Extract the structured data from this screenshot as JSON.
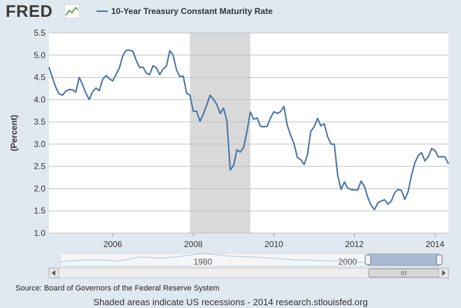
{
  "header": {
    "logo_text": "FRED",
    "logo_icon": "chart-line-icon"
  },
  "chart_data": {
    "type": "line",
    "series": [
      {
        "name": "10-Year Treasury Constant Maturity Rate",
        "color": "#4572a7",
        "x": [
          "2004-06",
          "2004-07",
          "2004-08",
          "2004-09",
          "2004-10",
          "2004-11",
          "2004-12",
          "2005-01",
          "2005-02",
          "2005-03",
          "2005-04",
          "2005-05",
          "2005-06",
          "2005-07",
          "2005-08",
          "2005-09",
          "2005-10",
          "2005-11",
          "2005-12",
          "2006-01",
          "2006-02",
          "2006-03",
          "2006-04",
          "2006-05",
          "2006-06",
          "2006-07",
          "2006-08",
          "2006-09",
          "2006-10",
          "2006-11",
          "2006-12",
          "2007-01",
          "2007-02",
          "2007-03",
          "2007-04",
          "2007-05",
          "2007-06",
          "2007-07",
          "2007-08",
          "2007-09",
          "2007-10",
          "2007-11",
          "2007-12",
          "2008-01",
          "2008-02",
          "2008-03",
          "2008-04",
          "2008-05",
          "2008-06",
          "2008-07",
          "2008-08",
          "2008-09",
          "2008-10",
          "2008-11",
          "2008-12",
          "2009-01",
          "2009-02",
          "2009-03",
          "2009-04",
          "2009-05",
          "2009-06",
          "2009-07",
          "2009-08",
          "2009-09",
          "2009-10",
          "2009-11",
          "2009-12",
          "2010-01",
          "2010-02",
          "2010-03",
          "2010-04",
          "2010-05",
          "2010-06",
          "2010-07",
          "2010-08",
          "2010-09",
          "2010-10",
          "2010-11",
          "2010-12",
          "2011-01",
          "2011-02",
          "2011-03",
          "2011-04",
          "2011-05",
          "2011-06",
          "2011-07",
          "2011-08",
          "2011-09",
          "2011-10",
          "2011-11",
          "2011-12",
          "2012-01",
          "2012-02",
          "2012-03",
          "2012-04",
          "2012-05",
          "2012-06",
          "2012-07",
          "2012-08",
          "2012-09",
          "2012-10",
          "2012-11",
          "2012-12",
          "2013-01",
          "2013-02",
          "2013-03",
          "2013-04",
          "2013-05",
          "2013-06",
          "2013-07",
          "2013-08",
          "2013-09",
          "2013-10",
          "2013-11",
          "2013-12",
          "2014-01",
          "2014-02",
          "2014-03",
          "2014-04",
          "2014-05"
        ],
        "values": [
          4.73,
          4.5,
          4.28,
          4.13,
          4.1,
          4.19,
          4.23,
          4.22,
          4.17,
          4.5,
          4.34,
          4.14,
          4.0,
          4.18,
          4.26,
          4.2,
          4.46,
          4.54,
          4.47,
          4.42,
          4.57,
          4.72,
          4.99,
          5.11,
          5.11,
          5.09,
          4.88,
          4.72,
          4.73,
          4.6,
          4.56,
          4.76,
          4.72,
          4.56,
          4.69,
          4.75,
          5.1,
          5.0,
          4.67,
          4.52,
          4.53,
          4.15,
          4.1,
          3.74,
          3.74,
          3.51,
          3.68,
          3.88,
          4.1,
          4.01,
          3.89,
          3.69,
          3.81,
          3.53,
          2.42,
          2.52,
          2.87,
          2.82,
          2.93,
          3.29,
          3.72,
          3.56,
          3.59,
          3.4,
          3.39,
          3.4,
          3.59,
          3.73,
          3.69,
          3.73,
          3.85,
          3.42,
          3.2,
          3.01,
          2.7,
          2.65,
          2.54,
          2.76,
          3.29,
          3.39,
          3.58,
          3.41,
          3.46,
          3.17,
          3.0,
          3.0,
          2.3,
          1.98,
          2.15,
          2.01,
          1.98,
          1.97,
          1.97,
          2.17,
          2.05,
          1.8,
          1.62,
          1.53,
          1.68,
          1.72,
          1.75,
          1.65,
          1.72,
          1.91,
          1.98,
          1.96,
          1.76,
          1.93,
          2.3,
          2.58,
          2.74,
          2.81,
          2.62,
          2.72,
          2.9,
          2.86,
          2.71,
          2.72,
          2.71,
          2.56
        ]
      }
    ],
    "ylabel": "(Percent)",
    "ylim": [
      1.0,
      5.5
    ],
    "yticks": [
      "1.0",
      "1.5",
      "2.0",
      "2.5",
      "3.0",
      "3.5",
      "4.0",
      "4.5",
      "5.0",
      "5.5"
    ],
    "xticks": [
      "2006",
      "2008",
      "2010",
      "2012",
      "2014"
    ],
    "recession": {
      "start": "2007-12",
      "end": "2009-06"
    },
    "navigator": {
      "labels": [
        "1980",
        "2000"
      ],
      "selected_start": "2004-06",
      "selected_end": "2014-05"
    },
    "grid": true
  },
  "footer": {
    "source": "Source: Board of Governors of the Federal Reserve System",
    "note": "Shaded areas indicate US recessions - 2014 research.stlouisfed.org"
  }
}
